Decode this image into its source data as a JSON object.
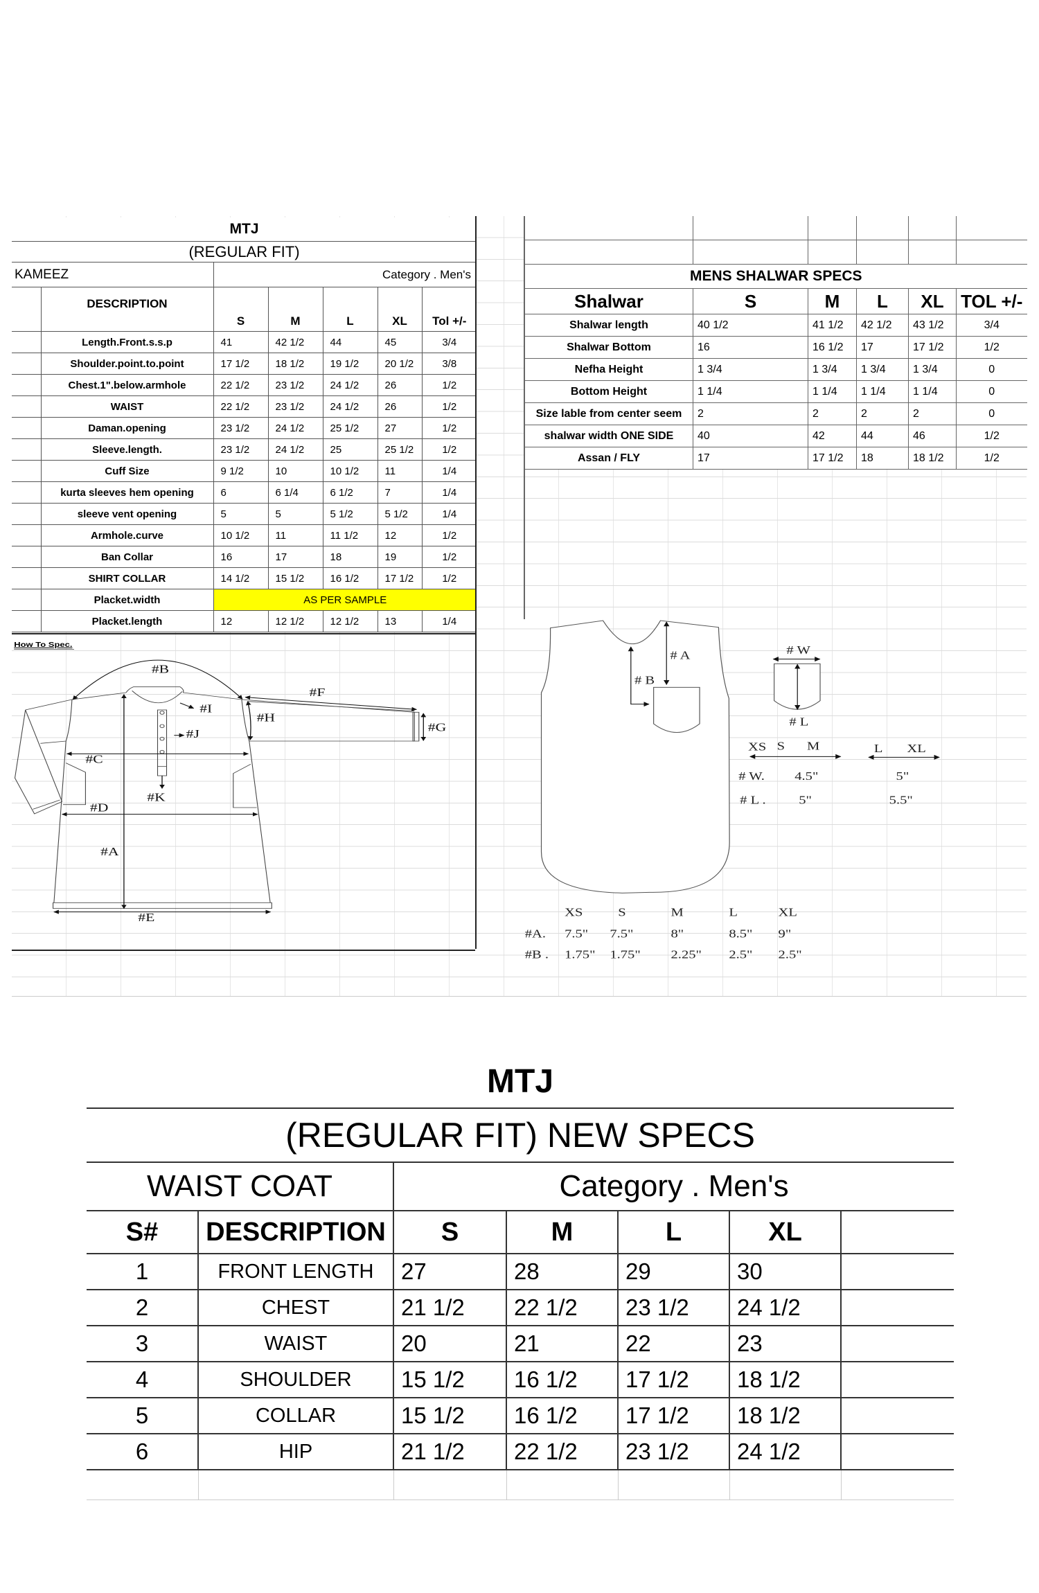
{
  "kameez": {
    "title": "MTJ",
    "subtitle": "(REGULAR FIT)",
    "section": "KAMEEZ",
    "category": "Category .  Men's",
    "headers": [
      "DESCRIPTION",
      "S",
      "M",
      "L",
      "XL",
      "Tol +/-"
    ],
    "rows": [
      [
        "Length.Front.s.s.p",
        "41",
        "42 1/2",
        "44",
        "45",
        "3/4"
      ],
      [
        "Shoulder.point.to.point",
        "17 1/2",
        "18 1/2",
        "19 1/2",
        "20 1/2",
        "3/8"
      ],
      [
        "Chest.1\".below.armhole",
        "22 1/2",
        "23 1/2",
        "24 1/2",
        "26",
        "1/2"
      ],
      [
        "WAIST",
        "22 1/2",
        "23 1/2",
        "24 1/2",
        "26",
        "1/2"
      ],
      [
        "Daman.opening",
        "23 1/2",
        "24 1/2",
        "25 1/2",
        "27",
        "1/2"
      ],
      [
        "Sleeve.length.",
        "23 1/2",
        "24 1/2",
        "25",
        "25 1/2",
        "1/2"
      ],
      [
        "Cuff Size",
        "9 1/2",
        "10",
        "10 1/2",
        "11",
        "1/4"
      ],
      [
        "kurta sleeves hem opening",
        "6",
        "6 1/4",
        "6 1/2",
        "7",
        "1/4"
      ],
      [
        "sleeve vent opening",
        "5",
        "5",
        "5 1/2",
        "5 1/2",
        "1/4"
      ],
      [
        "Armhole.curve",
        "10 1/2",
        "11",
        "11 1/2",
        "12",
        "1/2"
      ],
      [
        "Ban Collar",
        "16",
        "17",
        "18",
        "19",
        "1/2"
      ],
      [
        "SHIRT COLLAR",
        "14 1/2",
        "15 1/2",
        "16 1/2",
        "17 1/2",
        "1/2"
      ]
    ],
    "placket_width": {
      "label": "Placket.width",
      "value": "AS PER SAMPLE",
      "highlight_color": "#ffff00"
    },
    "placket_length": [
      "Placket.length",
      "12",
      "12 1/2",
      "12 1/2",
      "13",
      "1/4"
    ]
  },
  "shalwar": {
    "title": "MENS SHALWAR SPECS",
    "headers": [
      "Shalwar",
      "S",
      "M",
      "L",
      "XL",
      "TOL +/-"
    ],
    "rows": [
      [
        "Shalwar length",
        "40 1/2",
        "41 1/2",
        "42 1/2",
        "43 1/2",
        "3/4"
      ],
      [
        "Shalwar Bottom",
        "16",
        "16 1/2",
        "17",
        "17 1/2",
        "1/2"
      ],
      [
        "Nefha Height",
        "1 3/4",
        "1 3/4",
        "1 3/4",
        "1 3/4",
        "0"
      ],
      [
        "Bottom Height",
        "1 1/4",
        "1 1/4",
        "1 1/4",
        "1 1/4",
        "0"
      ],
      [
        "Size lable from center seem",
        "2",
        "2",
        "2",
        "2",
        "0"
      ],
      [
        "shalwar width ONE SIDE",
        "40",
        "42",
        "44",
        "46",
        "1/2"
      ],
      [
        "Assan / FLY",
        "17",
        "17 1/2",
        "18",
        "18 1/2",
        "1/2"
      ]
    ]
  },
  "how_to_spec": {
    "label": "How To Spec.",
    "points": [
      "#A",
      "#B",
      "#C",
      "#D",
      "#E",
      "#F",
      "#G",
      "#H",
      "#I",
      "#J",
      "#K"
    ]
  },
  "pocket_diagram": {
    "labels": {
      "a": "# A",
      "b": "# B",
      "w": "# W",
      "l": "# L"
    },
    "pocket_sizes": {
      "group1": [
        "XS",
        "S",
        "M"
      ],
      "group2": [
        "L",
        "XL"
      ],
      "w_label": "# W.",
      "l_label": "# L .",
      "w_values": [
        "4.5\"",
        "5\""
      ],
      "l_values": [
        "5\"",
        "5.5\""
      ]
    },
    "placement": {
      "sizes": [
        "XS",
        "S",
        "M",
        "L",
        "XL"
      ],
      "a_label": "#A.",
      "a_values": [
        "7.5\"",
        "7.5\"",
        "8\"",
        "8.5\"",
        "9\""
      ],
      "b_label": "#B .",
      "b_values": [
        "1.75\"",
        "1.75\"",
        "2.25\"",
        "2.5\"",
        "2.5\""
      ]
    }
  },
  "waist_coat": {
    "title": "MTJ",
    "subtitle": "(REGULAR FIT)  NEW SPECS",
    "section": "WAIST COAT",
    "category": "Category .  Men's",
    "headers": [
      "S#",
      "DESCRIPTION",
      "S",
      "M",
      "L",
      "XL",
      ""
    ],
    "rows": [
      [
        "1",
        "FRONT LENGTH",
        "27",
        "28",
        "29",
        "30"
      ],
      [
        "2",
        "CHEST",
        "21 1/2",
        "22 1/2",
        "23 1/2",
        "24 1/2"
      ],
      [
        "3",
        "WAIST",
        "20",
        "21",
        "22",
        "23"
      ],
      [
        "4",
        "SHOULDER",
        "15 1/2",
        "16 1/2",
        "17 1/2",
        "18 1/2"
      ],
      [
        "5",
        "COLLAR",
        "15 1/2",
        "16 1/2",
        "17 1/2",
        "18 1/2"
      ],
      [
        "6",
        "HIP",
        "21 1/2",
        "22 1/2",
        "23 1/2",
        "24 1/2"
      ]
    ]
  }
}
